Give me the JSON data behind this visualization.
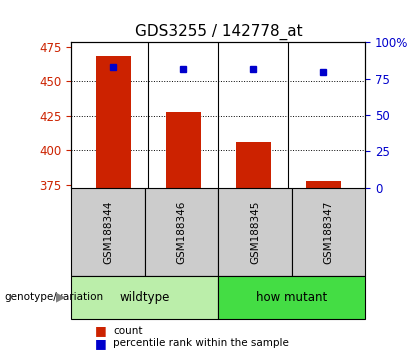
{
  "title": "GDS3255 / 142778_at",
  "samples": [
    "GSM188344",
    "GSM188346",
    "GSM188345",
    "GSM188347"
  ],
  "counts": [
    468,
    428,
    406,
    378
  ],
  "percentiles": [
    83,
    82,
    82,
    80
  ],
  "ylim_left": [
    373,
    478
  ],
  "ylim_right": [
    0,
    100
  ],
  "yticks_left": [
    375,
    400,
    425,
    450,
    475
  ],
  "yticks_right": [
    0,
    25,
    50,
    75,
    100
  ],
  "bar_color": "#cc2200",
  "marker_color": "#0000cc",
  "bar_width": 0.5,
  "wildtype_color": "#bbeeaa",
  "howmutant_color": "#44dd44",
  "group_label": "genotype/variation",
  "legend_count": "count",
  "legend_pct": "percentile rank within the sample",
  "sample_box_color": "#cccccc",
  "title_fontsize": 11,
  "axis_color_left": "#cc2200",
  "axis_color_right": "#0000cc",
  "group_info": [
    {
      "label": "wildtype",
      "start": 0,
      "end": 1,
      "color": "#bbeeaa"
    },
    {
      "label": "how mutant",
      "start": 2,
      "end": 3,
      "color": "#44dd44"
    }
  ]
}
